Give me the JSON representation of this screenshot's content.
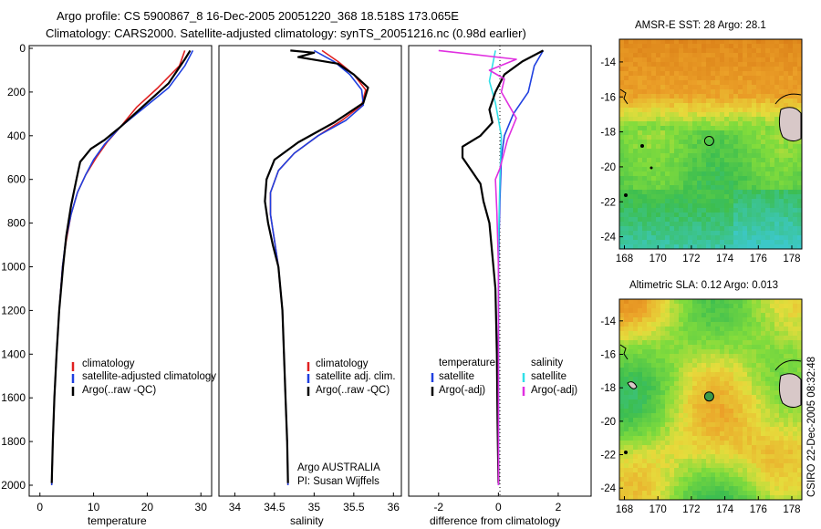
{
  "header": {
    "line1": "Argo profile: CS 5900867_8 16-Dec-2005 20051220_368 18.518S 173.065E",
    "line2": "Climatology: CARS2000. Satellite-adjusted climatology: synTS_20051216.nc (0.98d earlier)"
  },
  "colors": {
    "climatology": "#e02020",
    "satellite": "#2040e0",
    "argo": "#000000",
    "sat_salinity": "#30e0e8",
    "argo_salinity": "#e030e0"
  },
  "chart_data": [
    {
      "type": "line",
      "id": "temperature",
      "xlabel": "temperature",
      "ylabel": "",
      "xlim": [
        -2,
        32
      ],
      "ylim": [
        2050,
        0
      ],
      "xticks": [
        "0",
        "10",
        "20",
        "30"
      ],
      "xtick_values": [
        0,
        10,
        20,
        30
      ],
      "yticks": [
        "0",
        "200",
        "400",
        "600",
        "800",
        "1000",
        "1200",
        "1400",
        "1600",
        "1800",
        "2000"
      ],
      "ytick_values": [
        0,
        200,
        400,
        600,
        800,
        1000,
        1200,
        1400,
        1600,
        1800,
        2000
      ],
      "legend": [
        "climatology",
        "satellite-adjusted climatology",
        "Argo(..raw -QC)"
      ],
      "series": [
        {
          "name": "climatology",
          "color": "#e02020",
          "points": [
            [
              27,
              10
            ],
            [
              26,
              80
            ],
            [
              22,
              180
            ],
            [
              18,
              270
            ],
            [
              15,
              360
            ],
            [
              12.5,
              430
            ],
            [
              10.5,
              500
            ],
            [
              8.5,
              580
            ],
            [
              7,
              660
            ],
            [
              5.8,
              760
            ],
            [
              4.9,
              880
            ],
            [
              4.2,
              1000
            ],
            [
              3.6,
              1200
            ],
            [
              3.1,
              1400
            ],
            [
              2.7,
              1600
            ],
            [
              2.4,
              1800
            ],
            [
              2.2,
              2000
            ]
          ]
        },
        {
          "name": "satellite-adjusted climatology",
          "color": "#2040e0",
          "points": [
            [
              28.5,
              10
            ],
            [
              27,
              80
            ],
            [
              24,
              180
            ],
            [
              19,
              280
            ],
            [
              15,
              360
            ],
            [
              12,
              440
            ],
            [
              10,
              510
            ],
            [
              8.5,
              580
            ],
            [
              7,
              660
            ],
            [
              5.8,
              760
            ],
            [
              4.8,
              880
            ],
            [
              4.2,
              1000
            ],
            [
              3.6,
              1200
            ],
            [
              3.1,
              1400
            ],
            [
              2.7,
              1600
            ],
            [
              2.4,
              1800
            ],
            [
              2.2,
              2000
            ]
          ]
        },
        {
          "name": "Argo(..raw -QC)",
          "color": "#000000",
          "points": [
            [
              28,
              10
            ],
            [
              27,
              50
            ],
            [
              24,
              160
            ],
            [
              19,
              270
            ],
            [
              15,
              360
            ],
            [
              12,
              420
            ],
            [
              9.5,
              460
            ],
            [
              7.5,
              520
            ],
            [
              6.8,
              600
            ],
            [
              5.8,
              720
            ],
            [
              4.9,
              860
            ],
            [
              4.3,
              1000
            ],
            [
              3.6,
              1200
            ],
            [
              3.1,
              1400
            ],
            [
              2.7,
              1600
            ],
            [
              2.4,
              1800
            ],
            [
              2.2,
              1990
            ]
          ]
        }
      ]
    },
    {
      "type": "line",
      "id": "salinity",
      "xlabel": "salinity",
      "ylabel": "",
      "xlim": [
        33.8,
        36.1
      ],
      "ylim": [
        2050,
        0
      ],
      "xticks": [
        "34",
        "34.5",
        "35",
        "35.5",
        "36"
      ],
      "xtick_values": [
        34,
        34.5,
        35,
        35.5,
        36
      ],
      "legend": [
        "climatology",
        "satellite adj. clim.",
        "Argo(..raw -QC)"
      ],
      "annotation": [
        "Argo AUSTRALIA",
        "PI: Susan Wijffels"
      ],
      "series": [
        {
          "name": "climatology",
          "color": "#e02020",
          "points": [
            [
              35.1,
              10
            ],
            [
              35.3,
              60
            ],
            [
              35.5,
              120
            ],
            [
              35.65,
              190
            ],
            [
              35.6,
              260
            ],
            [
              35.35,
              330
            ],
            [
              35.05,
              400
            ],
            [
              34.75,
              480
            ],
            [
              34.55,
              560
            ],
            [
              34.45,
              660
            ],
            [
              34.45,
              760
            ],
            [
              34.5,
              880
            ],
            [
              34.55,
              1000
            ],
            [
              34.6,
              1200
            ],
            [
              34.62,
              1400
            ],
            [
              34.64,
              1600
            ],
            [
              34.66,
              1800
            ],
            [
              34.67,
              2000
            ]
          ]
        },
        {
          "name": "satellite adj. clim.",
          "color": "#2040e0",
          "points": [
            [
              35.0,
              10
            ],
            [
              35.25,
              60
            ],
            [
              35.45,
              120
            ],
            [
              35.6,
              190
            ],
            [
              35.62,
              260
            ],
            [
              35.4,
              330
            ],
            [
              35.05,
              400
            ],
            [
              34.75,
              480
            ],
            [
              34.55,
              560
            ],
            [
              34.45,
              660
            ],
            [
              34.45,
              760
            ],
            [
              34.5,
              880
            ],
            [
              34.55,
              1000
            ],
            [
              34.6,
              1200
            ],
            [
              34.62,
              1400
            ],
            [
              34.64,
              1600
            ],
            [
              34.66,
              1800
            ],
            [
              34.67,
              2000
            ]
          ]
        },
        {
          "name": "Argo(..raw -QC)",
          "color": "#000000",
          "points": [
            [
              34.7,
              10
            ],
            [
              35.0,
              20
            ],
            [
              34.8,
              40
            ],
            [
              35.3,
              70
            ],
            [
              35.5,
              120
            ],
            [
              35.68,
              180
            ],
            [
              35.62,
              250
            ],
            [
              35.25,
              340
            ],
            [
              34.8,
              430
            ],
            [
              34.5,
              510
            ],
            [
              34.4,
              600
            ],
            [
              34.38,
              700
            ],
            [
              34.42,
              800
            ],
            [
              34.48,
              900
            ],
            [
              34.55,
              1000
            ],
            [
              34.6,
              1200
            ],
            [
              34.62,
              1400
            ],
            [
              34.64,
              1600
            ],
            [
              34.66,
              1800
            ],
            [
              34.67,
              1990
            ]
          ]
        }
      ]
    },
    {
      "type": "line",
      "id": "difference",
      "xlabel": "difference from climatology",
      "ylabel": "",
      "xlim": [
        -3,
        3.1
      ],
      "ylim": [
        2050,
        0
      ],
      "xticks": [
        "-2",
        "0",
        "2"
      ],
      "xtick_values": [
        -2,
        0,
        2
      ],
      "legend_left": [
        "temperature",
        "satellite",
        "Argo(-adj)"
      ],
      "legend_right": [
        "salinity",
        "satellite",
        "Argo(-adj)"
      ],
      "series": [
        {
          "name": "temperature satellite",
          "color": "#2040e0",
          "points": [
            [
              1.5,
              10
            ],
            [
              1.2,
              80
            ],
            [
              1.0,
              200
            ],
            [
              0.5,
              300
            ],
            [
              0.2,
              400
            ],
            [
              0.1,
              500
            ],
            [
              0.05,
              700
            ],
            [
              0,
              1000
            ],
            [
              0,
              1500
            ],
            [
              0,
              2000
            ]
          ]
        },
        {
          "name": "salinity satellite",
          "color": "#30e0e8",
          "points": [
            [
              -0.1,
              10
            ],
            [
              -0.2,
              80
            ],
            [
              -0.3,
              150
            ],
            [
              -0.1,
              250
            ],
            [
              0.1,
              400
            ],
            [
              0.05,
              600
            ],
            [
              0,
              900
            ],
            [
              0,
              1500
            ],
            [
              0,
              2000
            ]
          ]
        },
        {
          "name": "temperature Argo(-adj)",
          "color": "#000000",
          "points": [
            [
              1.5,
              10
            ],
            [
              0.8,
              60
            ],
            [
              0.2,
              120
            ],
            [
              -0.1,
              200
            ],
            [
              -0.3,
              280
            ],
            [
              -0.2,
              340
            ],
            [
              -0.6,
              400
            ],
            [
              -1.2,
              450
            ],
            [
              -1.2,
              500
            ],
            [
              -0.9,
              560
            ],
            [
              -0.6,
              620
            ],
            [
              -0.5,
              700
            ],
            [
              -0.3,
              800
            ],
            [
              -0.2,
              950
            ],
            [
              -0.1,
              1100
            ],
            [
              -0.05,
              1400
            ],
            [
              -0.03,
              1700
            ],
            [
              0,
              1990
            ]
          ]
        },
        {
          "name": "salinity Argo(-adj)",
          "color": "#e030e0",
          "points": [
            [
              -2.0,
              10
            ],
            [
              0.6,
              50
            ],
            [
              -0.3,
              100
            ],
            [
              0.2,
              140
            ],
            [
              0.1,
              200
            ],
            [
              0.6,
              320
            ],
            [
              0.3,
              420
            ],
            [
              0.05,
              550
            ],
            [
              -0.1,
              600
            ],
            [
              -0.05,
              750
            ],
            [
              0,
              1000
            ],
            [
              0,
              1500
            ],
            [
              0,
              2000
            ]
          ]
        }
      ]
    },
    {
      "type": "heatmap",
      "id": "sst-map",
      "title": "AMSR-E SST: 28 Argo: 28.1",
      "xticks": [
        "168",
        "170",
        "172",
        "174",
        "176",
        "178"
      ],
      "xtick_values": [
        168,
        170,
        172,
        174,
        176,
        178
      ],
      "yticks": [
        "-14",
        "-16",
        "-18",
        "-20",
        "-22",
        "-24"
      ],
      "ytick_values": [
        -14,
        -16,
        -18,
        -20,
        -22,
        -24
      ],
      "xlim": [
        167.7,
        178.6
      ],
      "ylim": [
        -24.7,
        -12.7
      ],
      "marker": {
        "lon": 173.065,
        "lat": -18.518
      }
    },
    {
      "type": "heatmap",
      "id": "sla-map",
      "title": "Altimetric SLA: 0.12 Argo: 0.013",
      "xticks": [
        "168",
        "170",
        "172",
        "174",
        "176",
        "178"
      ],
      "xtick_values": [
        168,
        170,
        172,
        174,
        176,
        178
      ],
      "yticks": [
        "-14",
        "-16",
        "-18",
        "-20",
        "-22",
        "-24"
      ],
      "ytick_values": [
        -14,
        -16,
        -18,
        -20,
        -22,
        -24
      ],
      "xlim": [
        167.7,
        178.6
      ],
      "ylim": [
        -24.7,
        -12.7
      ],
      "marker": {
        "lon": 173.065,
        "lat": -18.518
      }
    }
  ],
  "footer": {
    "stamp": "CSIRO 22-Dec-2005 08:32:48"
  }
}
